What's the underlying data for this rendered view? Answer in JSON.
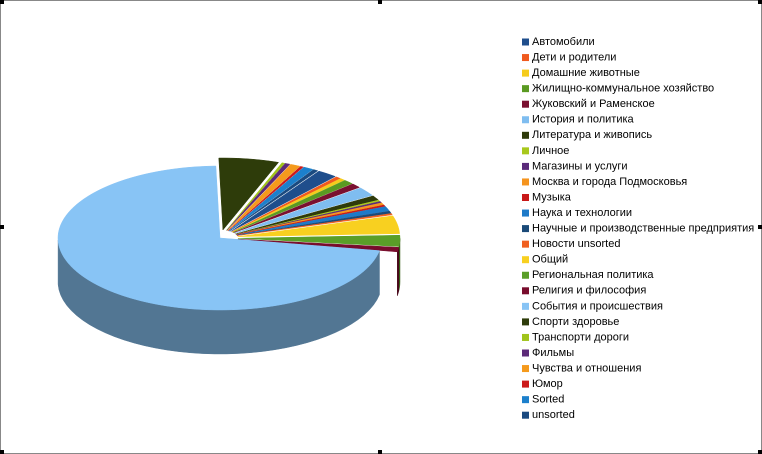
{
  "chart_data": {
    "type": "pie",
    "categories": [
      "Автомобили",
      "Дети и родители",
      "Домашние животные",
      "Жилищно-коммунальное хозяйство",
      "Жуковский и Раменское",
      "История и политика",
      "Литература и живопись",
      "Личное",
      "Магазины и услуги",
      "Москва и города Подмосковья",
      "Музыка",
      "Наука и технологии",
      "Научные и производственные предприятия",
      "Новости unsorted",
      "Общий",
      "Региональная политика",
      "Религия и философия",
      "События и происшествия",
      "Спорти здоровье",
      "Транспорти дороги",
      "Фильмы",
      "Чувства и отношения",
      "Юмор",
      "Sorted",
      "unsorted"
    ],
    "values": [
      2,
      0.5,
      0.5,
      1,
      1,
      2,
      1,
      0.3,
      0.3,
      0.5,
      0.3,
      1,
      0.5,
      0.3,
      4,
      2.5,
      1,
      72,
      6,
      0.3,
      0.5,
      1,
      0.3,
      1,
      0.5
    ],
    "colors": [
      "#1f4e8c",
      "#f05a1e",
      "#f5cc1c",
      "#5a9a22",
      "#7a1030",
      "#7fbdf0",
      "#2e3a0a",
      "#a8c81c",
      "#5a2a7a",
      "#f5941e",
      "#c81818",
      "#1e7ac8",
      "#1a4a78",
      "#f06020",
      "#f8d020",
      "#5a9e28",
      "#780c2c",
      "#88c4f5",
      "#2e3c0a",
      "#a0c41a",
      "#5c2a78",
      "#f59a1c",
      "#cc1a1a",
      "#1c80cc",
      "#1a4a80"
    ],
    "legend": "right"
  }
}
